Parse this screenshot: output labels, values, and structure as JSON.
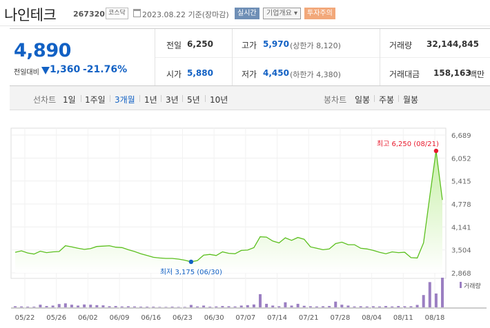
{
  "header": {
    "stock_name": "나인테크",
    "stock_code": "267320",
    "market": "코스닥",
    "date_text": "2023.08.22 기준(장마감)",
    "btn_realtime": "실시간",
    "btn_company_info": "기업개요 ▾",
    "btn_warning": "투자주의"
  },
  "price": {
    "current": "4,890",
    "change_label": "전일대비",
    "change_value": "1,360",
    "change_pct": "-21.76%",
    "color_down": "#1261c4"
  },
  "summary": {
    "prev_close_label": "전일",
    "prev_close": "6,250",
    "open_label": "시가",
    "open": "5,880",
    "high_label": "고가",
    "high": "5,970",
    "upper_limit": "(상한가 8,120)",
    "low_label": "저가",
    "low": "4,450",
    "lower_limit": "(하한가 4,380)",
    "volume_label": "거래량",
    "volume": "32,144,845",
    "amount_label": "거래대금",
    "amount": "158,163",
    "amount_unit": "백만"
  },
  "period_bar": {
    "line_label": "선차트",
    "line_periods": [
      "1일",
      "1주일",
      "3개월",
      "1년",
      "3년",
      "5년",
      "10년"
    ],
    "active_period": "3개월",
    "candle_label": "봉차트",
    "candle_periods": [
      "일봉",
      "주봉",
      "월봉"
    ]
  },
  "chart_data": {
    "type": "area",
    "y_ticks": [
      6689,
      6052,
      5415,
      4778,
      4141,
      3504,
      2868
    ],
    "y_tick_labels": [
      "6,689",
      "6,052",
      "5,415",
      "4,778",
      "4,141",
      "3,504",
      "2,868"
    ],
    "ylim": [
      2868,
      6689
    ],
    "x_ticks": [
      "05/22",
      "05/26",
      "06/02",
      "06/09",
      "06/16",
      "06/23",
      "06/30",
      "07/07",
      "07/14",
      "07/21",
      "07/28",
      "08/04",
      "08/11",
      "08/18"
    ],
    "high_label": "최고 6,250 (08/21)",
    "low_label": "최저 3,175 (06/30)",
    "high": 6250,
    "low": 3175,
    "prices": [
      3440,
      3480,
      3420,
      3390,
      3470,
      3430,
      3450,
      3460,
      3620,
      3590,
      3550,
      3520,
      3540,
      3600,
      3610,
      3620,
      3580,
      3570,
      3510,
      3460,
      3400,
      3350,
      3300,
      3280,
      3270,
      3270,
      3250,
      3220,
      3175,
      3210,
      3360,
      3380,
      3350,
      3450,
      3410,
      3400,
      3490,
      3500,
      3570,
      3870,
      3860,
      3750,
      3700,
      3840,
      3770,
      3850,
      3800,
      3590,
      3550,
      3510,
      3530,
      3680,
      3720,
      3650,
      3650,
      3550,
      3530,
      3490,
      3440,
      3400,
      3450,
      3430,
      3440,
      3290,
      3280,
      3700,
      5000,
      6250,
      4890
    ],
    "volume_label": "거래량",
    "volumes": [
      0.5,
      0.4,
      0.3,
      0.3,
      1.2,
      0.6,
      0.8,
      1.5,
      1.8,
      1.2,
      0.8,
      1.3,
      1.2,
      1.0,
      0.9,
      0.5,
      0.6,
      0.4,
      0.5,
      0.4,
      0.3,
      0.3,
      0.3,
      0.2,
      0.2,
      0.3,
      0.2,
      0.2,
      1.1,
      0.4,
      0.8,
      0.3,
      0.4,
      0.6,
      0.5,
      0.4,
      0.8,
      1.0,
      1.3,
      6.0,
      1.6,
      0.8,
      0.5,
      2.3,
      0.8,
      1.6,
      0.7,
      0.5,
      0.4,
      0.5,
      0.6,
      2.6,
      1.2,
      0.8,
      0.4,
      0.5,
      0.4,
      0.5,
      0.4,
      0.6,
      0.4,
      0.6,
      0.5,
      0.5,
      1.1,
      5.6,
      11.5,
      6.3,
      13.5
    ],
    "colors": {
      "line": "#5bbf1e",
      "fill_top": "#c8f0a8",
      "fill_bottom": "#ffffff",
      "volume": "#9b7fc2",
      "high_point": "#e8192c",
      "low_point": "#1261c4"
    }
  }
}
